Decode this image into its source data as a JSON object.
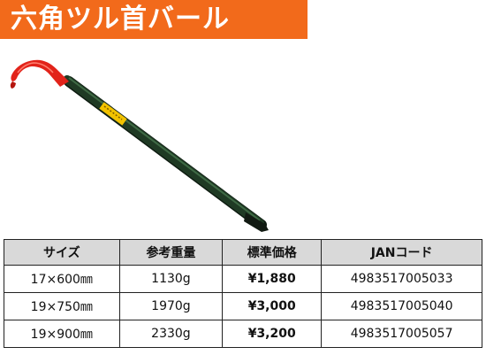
{
  "title": "六角ツル首バール",
  "colors": {
    "title_band": "#f26a1b",
    "title_text": "#ffffff",
    "bar_hook": "#e2231a",
    "bar_shaft": "#1f3a24",
    "label": "#f2c200",
    "table_header_bg": "#d9d9d9"
  },
  "table": {
    "headers": [
      "サイズ",
      "参考重量",
      "標準価格",
      "JANコード"
    ],
    "rows": [
      {
        "size": "17×600㎜",
        "weight": "1130g",
        "price": "¥1,880",
        "jan": "4983517005033"
      },
      {
        "size": "19×750㎜",
        "weight": "1970g",
        "price": "¥3,000",
        "jan": "4983517005040"
      },
      {
        "size": "19×900㎜",
        "weight": "2330g",
        "price": "¥3,200",
        "jan": "4983517005057"
      }
    ]
  }
}
